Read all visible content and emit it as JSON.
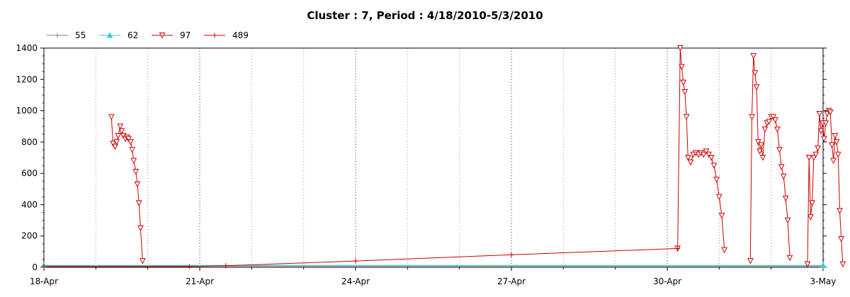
{
  "chart_data": {
    "type": "line",
    "title": "Cluster : 7, Period : 4/18/2010-5/3/2010",
    "xlabel": "",
    "ylabel": "",
    "x_ticks": [
      "18-Apr",
      "21-Apr",
      "24-Apr",
      "27-Apr",
      "30-Apr",
      "3-May"
    ],
    "ylim": [
      0,
      1400
    ],
    "y_ticks": [
      0,
      200,
      400,
      600,
      800,
      1000,
      1200,
      1400
    ],
    "grid": "dotted vertical",
    "legend_position": "top-left",
    "series": [
      {
        "name": "55",
        "color": "#808080",
        "marker": "plus",
        "points": [
          [
            0,
            8
          ],
          [
            15,
            8
          ]
        ]
      },
      {
        "name": "62",
        "color": "#33cccc",
        "marker": "triangle-up",
        "points": [
          [
            0,
            12
          ],
          [
            15,
            12
          ]
        ]
      },
      {
        "name": "97",
        "color": "#cc0000",
        "marker": "triangle-down",
        "segments": [
          [
            [
              1.3,
              960
            ],
            [
              1.33,
              790
            ],
            [
              1.37,
              770
            ],
            [
              1.4,
              800
            ],
            [
              1.43,
              840
            ],
            [
              1.47,
              900
            ],
            [
              1.5,
              870
            ],
            [
              1.53,
              840
            ],
            [
              1.57,
              820
            ],
            [
              1.6,
              830
            ],
            [
              1.63,
              820
            ],
            [
              1.67,
              800
            ],
            [
              1.7,
              750
            ],
            [
              1.73,
              680
            ],
            [
              1.77,
              610
            ],
            [
              1.8,
              530
            ],
            [
              1.83,
              410
            ],
            [
              1.86,
              250
            ],
            [
              1.9,
              40
            ]
          ],
          [
            [
              12.2,
              120
            ],
            [
              12.25,
              1400
            ],
            [
              12.28,
              1280
            ],
            [
              12.31,
              1180
            ],
            [
              12.34,
              1120
            ],
            [
              12.37,
              960
            ],
            [
              12.4,
              700
            ],
            [
              12.45,
              670
            ],
            [
              12.5,
              720
            ],
            [
              12.55,
              730
            ],
            [
              12.6,
              720
            ],
            [
              12.65,
              730
            ],
            [
              12.7,
              720
            ],
            [
              12.75,
              740
            ],
            [
              12.8,
              720
            ],
            [
              12.85,
              700
            ],
            [
              12.9,
              650
            ],
            [
              12.95,
              560
            ],
            [
              13.0,
              450
            ],
            [
              13.05,
              330
            ],
            [
              13.1,
              110
            ]
          ],
          [
            [
              13.6,
              40
            ],
            [
              13.63,
              960
            ],
            [
              13.66,
              1350
            ],
            [
              13.69,
              1240
            ],
            [
              13.72,
              1150
            ],
            [
              13.75,
              800
            ],
            [
              13.78,
              740
            ],
            [
              13.81,
              780
            ],
            [
              13.84,
              700
            ],
            [
              13.88,
              880
            ],
            [
              13.92,
              920
            ],
            [
              13.96,
              930
            ],
            [
              14.0,
              960
            ],
            [
              14.04,
              960
            ],
            [
              14.08,
              940
            ],
            [
              14.12,
              880
            ],
            [
              14.16,
              750
            ],
            [
              14.2,
              640
            ],
            [
              14.24,
              580
            ],
            [
              14.28,
              440
            ],
            [
              14.32,
              300
            ],
            [
              14.36,
              60
            ]
          ],
          [
            [
              14.7,
              20
            ],
            [
              14.73,
              700
            ],
            [
              14.76,
              320
            ],
            [
              14.79,
              410
            ],
            [
              14.82,
              700
            ],
            [
              14.86,
              720
            ],
            [
              14.9,
              760
            ],
            [
              14.93,
              980
            ],
            [
              14.96,
              870
            ],
            [
              14.99,
              920
            ],
            [
              15.02,
              820
            ],
            [
              15.05,
              920
            ],
            [
              15.08,
              980
            ],
            [
              15.11,
              1000
            ],
            [
              15.14,
              990
            ],
            [
              15.17,
              780
            ],
            [
              15.2,
              680
            ],
            [
              15.23,
              840
            ],
            [
              15.26,
              800
            ],
            [
              15.29,
              720
            ],
            [
              15.32,
              360
            ],
            [
              15.35,
              180
            ],
            [
              15.38,
              20
            ]
          ]
        ]
      },
      {
        "name": "489",
        "color": "#cc0000",
        "marker": "plus",
        "points": [
          [
            0,
            5
          ],
          [
            2.8,
            5
          ],
          [
            3.5,
            10
          ],
          [
            6.0,
            40
          ],
          [
            9.0,
            80
          ],
          [
            12.2,
            120
          ]
        ]
      }
    ]
  }
}
